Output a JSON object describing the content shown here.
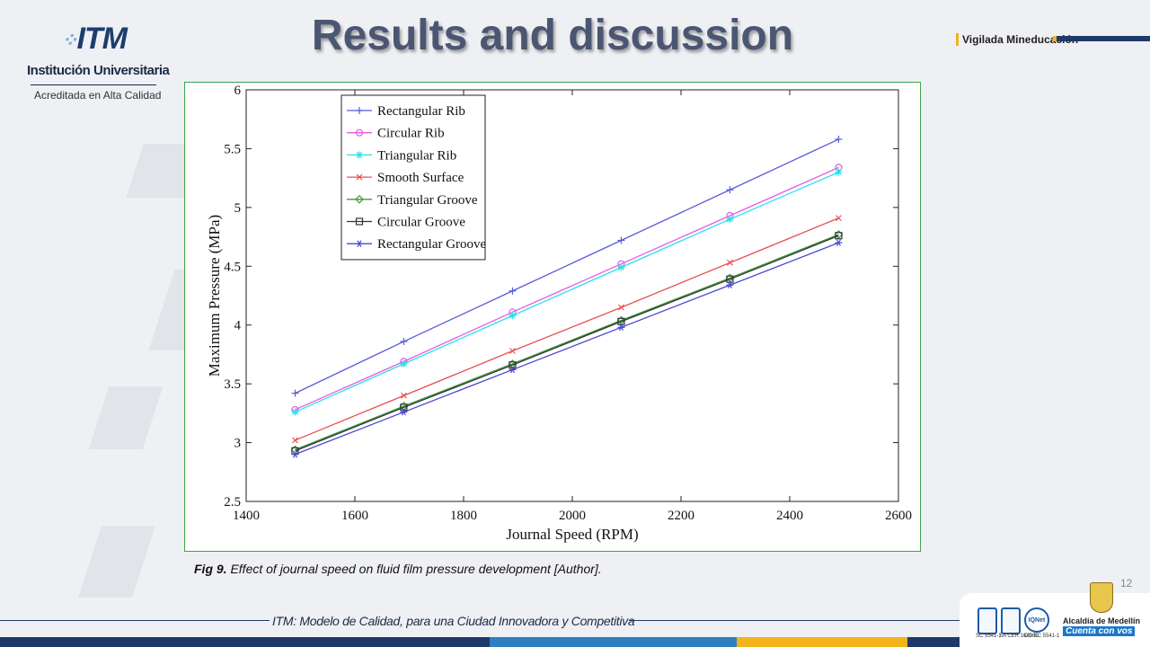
{
  "slide": {
    "title": "Results and discussion",
    "page_number": "12",
    "caption_label": "Fig 9.",
    "caption_text": " Effect of journal speed on fluid film pressure development [Author].",
    "footer_text": "ITM: Modelo de Calidad, para una Ciudad Innovadora y Competitiva",
    "bottom_bar_colors": [
      "#1d3a6a",
      "#2d7fc1",
      "#f2b31b",
      "#1d3a6a"
    ]
  },
  "logo": {
    "mark": "ITM",
    "name": "Institución Universitaria",
    "subtitle": "Acreditada en Alta Calidad"
  },
  "header_right": {
    "text": "Vigilada Mineducación"
  },
  "footer_right": {
    "city_name": "Alcaldía de Medellín",
    "city_slogan": "Cuenta con vos",
    "cert_1": "SC 5541-1",
    "cert_2": "SA CER 164980",
    "cert_3": "CO SC 5541-1",
    "iqnet": "IQNet"
  },
  "chart_data": {
    "type": "line",
    "xlabel": "Journal Speed (RPM)",
    "ylabel": "Maximum Pressure (MPa)",
    "xlim": [
      1400,
      2600
    ],
    "ylim": [
      2.5,
      6
    ],
    "xticks": [
      1400,
      1600,
      1800,
      2000,
      2200,
      2400,
      2600
    ],
    "yticks": [
      2.5,
      3,
      3.5,
      4,
      4.5,
      5,
      5.5,
      6
    ],
    "grid": false,
    "legend_position": "top-left",
    "x": [
      1490,
      1690,
      1890,
      2090,
      2290,
      2490
    ],
    "series": [
      {
        "name": "Rectangular Rib",
        "color": "#5a5adb",
        "marker": "plus",
        "values": [
          3.42,
          3.86,
          4.29,
          4.72,
          5.15,
          5.58
        ]
      },
      {
        "name": "Circular Rib",
        "color": "#e35ce3",
        "marker": "circle",
        "values": [
          3.28,
          3.69,
          4.11,
          4.52,
          4.93,
          5.34
        ]
      },
      {
        "name": "Triangular Rib",
        "color": "#2ee0ea",
        "marker": "star",
        "values": [
          3.26,
          3.67,
          4.08,
          4.49,
          4.9,
          5.3
        ]
      },
      {
        "name": "Smooth Surface",
        "color": "#e85050",
        "marker": "x",
        "values": [
          3.02,
          3.4,
          3.78,
          4.15,
          4.53,
          4.91
        ]
      },
      {
        "name": "Triangular Groove",
        "color": "#3c9a3c",
        "marker": "diamond",
        "values": [
          2.94,
          3.31,
          3.67,
          4.04,
          4.4,
          4.77
        ]
      },
      {
        "name": "Circular Groove",
        "color": "#333333",
        "marker": "square",
        "values": [
          2.93,
          3.3,
          3.66,
          4.03,
          4.39,
          4.76
        ]
      },
      {
        "name": "Rectangular Groove",
        "color": "#4848d0",
        "marker": "asterisk",
        "values": [
          2.9,
          3.26,
          3.62,
          3.98,
          4.34,
          4.7
        ]
      }
    ]
  }
}
